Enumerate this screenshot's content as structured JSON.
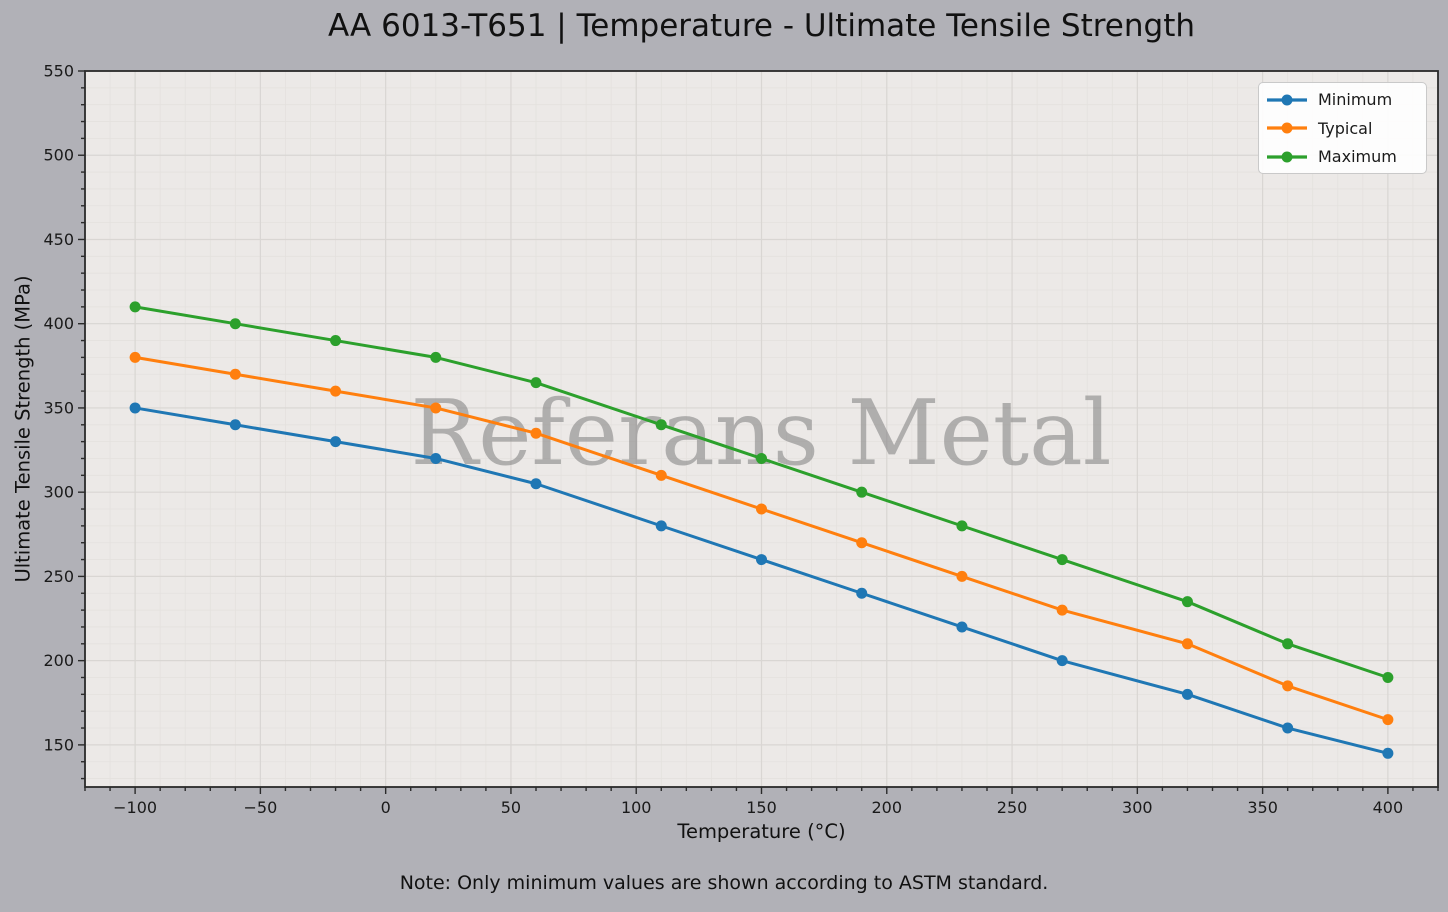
{
  "figure": {
    "note": "Note: Only minimum values are shown according to ASTM standard.",
    "watermark": "Referans Metal"
  },
  "chart_data": {
    "type": "line",
    "title": "AA 6013-T651 | Temperature - Ultimate Tensile Strength",
    "xlabel": "Temperature (°C)",
    "ylabel": "Ultimate Tensile Strength (MPa)",
    "x": [
      -100,
      -60,
      -20,
      20,
      60,
      110,
      150,
      190,
      230,
      270,
      320,
      360,
      400
    ],
    "series": [
      {
        "name": "Minimum",
        "color": "#1f77b4",
        "values": [
          350,
          340,
          330,
          320,
          305,
          280,
          260,
          240,
          220,
          200,
          180,
          160,
          145
        ]
      },
      {
        "name": "Typical",
        "color": "#ff7f0e",
        "values": [
          380,
          370,
          360,
          350,
          335,
          310,
          290,
          270,
          250,
          230,
          210,
          185,
          165
        ]
      },
      {
        "name": "Maximum",
        "color": "#2ca02c",
        "values": [
          410,
          400,
          390,
          380,
          365,
          340,
          320,
          300,
          280,
          260,
          235,
          210,
          190
        ]
      }
    ],
    "xlim": [
      -120,
      420
    ],
    "ylim": [
      125,
      550
    ],
    "x_ticks": [
      -100,
      -50,
      0,
      50,
      100,
      150,
      200,
      250,
      300,
      350,
      400
    ],
    "x_tick_labels": [
      "−100",
      "−50",
      "0",
      "50",
      "100",
      "150",
      "200",
      "250",
      "300",
      "350",
      "400"
    ],
    "y_ticks": [
      150,
      200,
      250,
      300,
      350,
      400,
      450,
      500,
      550
    ],
    "y_tick_labels": [
      "150",
      "200",
      "250",
      "300",
      "350",
      "400",
      "450",
      "500",
      "550"
    ],
    "minor_tick_step": 10,
    "grid": true,
    "legend_position": "upper right",
    "colors": {
      "figure_bg": "#b1b1b7",
      "plot_bg": "#ece9e7",
      "grid_major": "#d9d6d3",
      "grid_minor": "#e4e1de",
      "spine": "#2a2a2a",
      "tick": "#2a2a2a",
      "watermark": "#7d7d7d"
    }
  }
}
